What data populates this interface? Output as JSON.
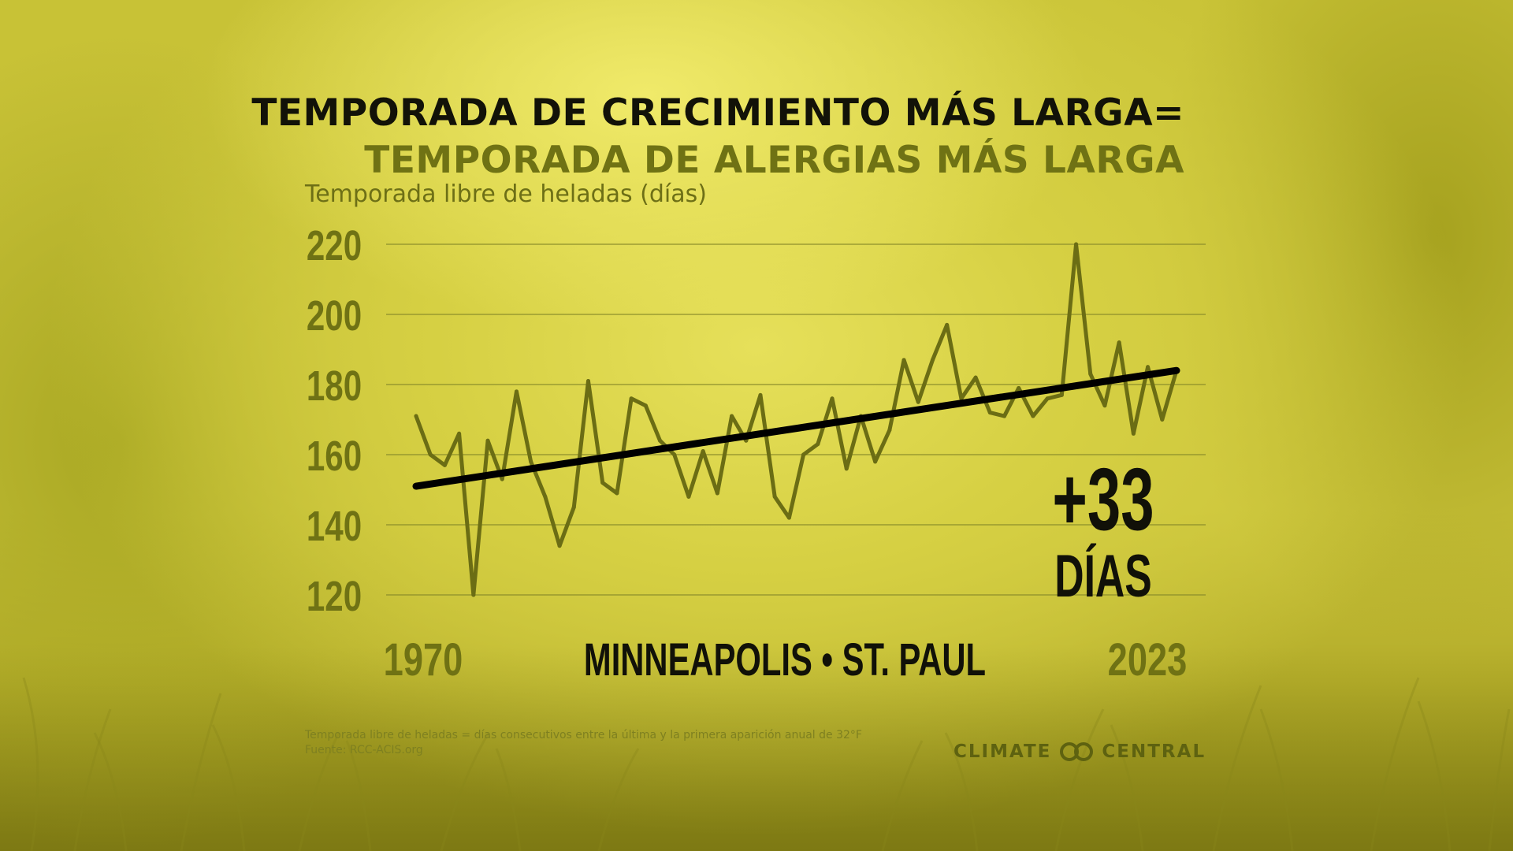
{
  "title_line1": "TEMPORADA DE CRECIMIENTO MÁS LARGA=",
  "title_line2": "TEMPORADA DE ALERGIAS MÁS LARGA",
  "colors": {
    "title_dark": "#121208",
    "title_olive": "#6f7214",
    "series": "#6b6d14",
    "trend": "#000000",
    "grid": "#8a8c2a",
    "tick": "#6f7214"
  },
  "chart_data": {
    "type": "line",
    "ylabel": "Temporada libre de heladas (días)",
    "ylim": [
      120,
      220
    ],
    "yticks": [
      220,
      200,
      180,
      160,
      140,
      120
    ],
    "x_start_label": "1970",
    "x_end_label": "2023",
    "location_label": "MINNEAPOLIS • ST. PAUL",
    "grid": "horizontal",
    "series": [
      {
        "x": [
          1970,
          1971,
          1972,
          1973,
          1974,
          1975,
          1976,
          1977,
          1978,
          1979,
          1980,
          1981,
          1982,
          1983,
          1984,
          1985,
          1986,
          1987,
          1988,
          1989,
          1990,
          1991,
          1992,
          1993,
          1994,
          1995,
          1996,
          1997,
          1998,
          1999,
          2000,
          2001,
          2002,
          2003,
          2004,
          2005,
          2006,
          2007,
          2008,
          2009,
          2010,
          2011,
          2012,
          2013,
          2014,
          2015,
          2016,
          2017,
          2018,
          2019,
          2020,
          2021,
          2022,
          2023
        ],
        "values": [
          171,
          160,
          157,
          166,
          120,
          164,
          153,
          178,
          158,
          148,
          134,
          145,
          181,
          152,
          149,
          176,
          174,
          164,
          160,
          148,
          161,
          149,
          171,
          164,
          177,
          148,
          142,
          160,
          163,
          176,
          156,
          171,
          158,
          167,
          187,
          175,
          187,
          197,
          176,
          182,
          172,
          171,
          179,
          171,
          176,
          177,
          220,
          183,
          174,
          192,
          166,
          185,
          170,
          184
        ]
      }
    ],
    "trend": {
      "start": [
        1970,
        151
      ],
      "end": [
        2023,
        184
      ]
    },
    "annotation": {
      "value": "+33",
      "unit": "DÍAS"
    }
  },
  "footnote": {
    "line1": "Temporada libre de heladas = días consecutivos entre la última y la primera aparición anual de 32°F",
    "line2": "Fuente: RCC-ACIS.org"
  },
  "logo": {
    "left": "CLIMATE",
    "right": "CENTRAL",
    "icon": "climate-central-rings-icon"
  }
}
